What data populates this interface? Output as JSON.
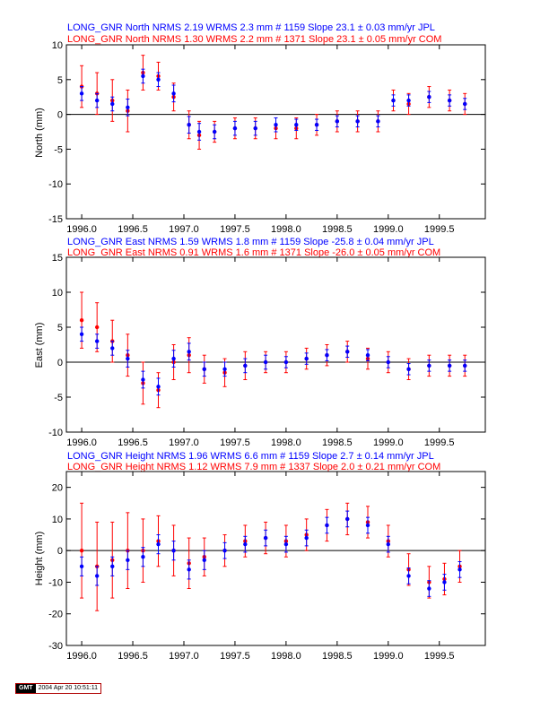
{
  "colors": {
    "red": "#ff0000",
    "blue": "#0000ff",
    "axis": "#000000"
  },
  "x_ticks": [
    "1996.0",
    "1996.5",
    "1997.0",
    "1997.5",
    "1998.0",
    "1998.5",
    "1999.0",
    "1999.5"
  ],
  "panels": [
    {
      "header_jpl": "LONG_GNR North NRMS 2.19 WRMS  2.3 mm # 1159 Slope   23.1 ±  0.03 mm/yr JPL",
      "header_com": "LONG_GNR North NRMS 1.30 WRMS  2.2 mm # 1371 Slope   23.1 ±  0.05 mm/yr COM",
      "ylabel": "North (mm)",
      "y_ticks": [
        "10",
        "5",
        "0",
        "-5",
        "-10",
        "-15"
      ]
    },
    {
      "header_jpl": "LONG_GNR East NRMS 1.59 WRMS  1.8 mm # 1159 Slope  -25.8 ±  0.04 mm/yr JPL",
      "header_com": "LONG_GNR East NRMS 0.91 WRMS  1.6 mm # 1371 Slope  -26.0 ±  0.05 mm/yr COM",
      "ylabel": "East (mm)",
      "y_ticks": [
        "15",
        "10",
        "5",
        "0",
        "-5",
        "-10"
      ]
    },
    {
      "header_jpl": "LONG_GNR Height NRMS 1.96 WRMS  6.6 mm # 1159 Slope    2.7 ±  0.14 mm/yr JPL",
      "header_com": "LONG_GNR Height NRMS 1.12 WRMS  7.9 mm # 1337 Slope    2.0 ±  0.21 mm/yr COM",
      "ylabel": "Height (mm)",
      "y_ticks": [
        "20",
        "10",
        "0",
        "-10",
        "-20",
        "-30"
      ]
    }
  ],
  "chart_data": [
    {
      "type": "scatter",
      "title": "LONG_GNR North",
      "xlabel": "",
      "ylabel": "North (mm)",
      "xlim": [
        1995.85,
        1999.95
      ],
      "ylim": [
        -15,
        10
      ],
      "grid": false,
      "zero_line": true,
      "error_bars": true,
      "series": [
        {
          "name": "JPL",
          "color": "#0000ff",
          "x": [
            1996.0,
            1996.15,
            1996.3,
            1996.45,
            1996.6,
            1996.75,
            1996.9,
            1997.05,
            1997.15,
            1997.3,
            1997.5,
            1997.7,
            1997.9,
            1998.1,
            1998.3,
            1998.5,
            1998.7,
            1998.9,
            1999.05,
            1999.2,
            1999.4,
            1999.6,
            1999.75
          ],
          "y": [
            3.0,
            2.0,
            1.5,
            1.0,
            5.5,
            5.0,
            3.0,
            -1.5,
            -2.5,
            -2.5,
            -2.0,
            -2.0,
            -1.5,
            -1.5,
            -1.5,
            -1.0,
            -1.0,
            -1.0,
            2.0,
            2.0,
            2.5,
            2.0,
            1.5
          ],
          "err": [
            1.0,
            1.0,
            1.0,
            1.2,
            1.0,
            1.0,
            1.2,
            1.2,
            1.2,
            1.0,
            1.0,
            1.0,
            1.0,
            0.8,
            0.8,
            0.8,
            0.8,
            0.8,
            0.8,
            0.8,
            0.8,
            0.8,
            0.8
          ]
        },
        {
          "name": "COM",
          "color": "#ff0000",
          "x": [
            1996.0,
            1996.15,
            1996.3,
            1996.45,
            1996.6,
            1996.75,
            1996.9,
            1997.05,
            1997.15,
            1997.3,
            1997.5,
            1997.7,
            1997.9,
            1998.1,
            1998.3,
            1998.5,
            1998.7,
            1998.9,
            1999.05,
            1999.2,
            1999.4,
            1999.6,
            1999.75
          ],
          "y": [
            4.0,
            3.0,
            2.0,
            0.5,
            6.0,
            5.5,
            2.5,
            -1.5,
            -3.0,
            -2.5,
            -2.0,
            -2.0,
            -2.0,
            -2.0,
            -1.5,
            -1.0,
            -1.0,
            -1.0,
            2.0,
            1.5,
            2.5,
            2.0,
            1.5
          ],
          "err": [
            3.0,
            3.0,
            3.0,
            3.0,
            2.5,
            2.0,
            2.0,
            2.0,
            2.0,
            1.5,
            1.5,
            1.5,
            1.5,
            1.5,
            1.5,
            1.5,
            1.5,
            1.5,
            1.5,
            1.5,
            1.5,
            1.5,
            1.5
          ]
        }
      ]
    },
    {
      "type": "scatter",
      "title": "LONG_GNR East",
      "xlabel": "",
      "ylabel": "East (mm)",
      "xlim": [
        1995.85,
        1999.95
      ],
      "ylim": [
        -10,
        15
      ],
      "grid": false,
      "zero_line": true,
      "error_bars": true,
      "series": [
        {
          "name": "JPL",
          "color": "#0000ff",
          "x": [
            1996.0,
            1996.15,
            1996.3,
            1996.45,
            1996.6,
            1996.75,
            1996.9,
            1997.05,
            1997.2,
            1997.4,
            1997.6,
            1997.8,
            1998.0,
            1998.2,
            1998.4,
            1998.6,
            1998.8,
            1999.0,
            1999.2,
            1999.4,
            1999.6,
            1999.75
          ],
          "y": [
            4.0,
            3.0,
            2.0,
            0.5,
            -2.5,
            -3.5,
            0.5,
            1.5,
            -1.0,
            -1.0,
            -0.5,
            0.0,
            0.0,
            0.5,
            1.0,
            1.5,
            1.0,
            0.0,
            -1.0,
            -0.5,
            -0.5,
            -0.5
          ],
          "err": [
            1.0,
            1.0,
            1.0,
            1.2,
            1.2,
            1.2,
            1.2,
            1.2,
            1.0,
            1.0,
            1.0,
            1.0,
            0.8,
            0.8,
            0.8,
            0.8,
            0.8,
            0.8,
            0.8,
            0.8,
            0.8,
            0.8
          ]
        },
        {
          "name": "COM",
          "color": "#ff0000",
          "x": [
            1996.0,
            1996.15,
            1996.3,
            1996.45,
            1996.6,
            1996.75,
            1996.9,
            1997.05,
            1997.2,
            1997.4,
            1997.6,
            1997.8,
            1998.0,
            1998.2,
            1998.4,
            1998.6,
            1998.8,
            1999.0,
            1999.2,
            1999.4,
            1999.6,
            1999.75
          ],
          "y": [
            6.0,
            5.0,
            3.0,
            1.0,
            -3.0,
            -4.0,
            0.0,
            1.0,
            -1.0,
            -1.5,
            -0.5,
            0.0,
            0.0,
            0.5,
            1.0,
            1.5,
            0.5,
            0.0,
            -1.0,
            -0.5,
            -0.5,
            -0.5
          ],
          "err": [
            4.0,
            3.5,
            3.0,
            3.0,
            3.0,
            2.5,
            2.5,
            2.5,
            2.0,
            2.0,
            2.0,
            1.5,
            1.5,
            1.5,
            1.5,
            1.5,
            1.5,
            1.5,
            1.5,
            1.5,
            1.5,
            1.5
          ]
        }
      ]
    },
    {
      "type": "scatter",
      "title": "LONG_GNR Height",
      "xlabel": "",
      "ylabel": "Height (mm)",
      "xlim": [
        1995.85,
        1999.95
      ],
      "ylim": [
        -30,
        25
      ],
      "grid": false,
      "zero_line": true,
      "error_bars": true,
      "series": [
        {
          "name": "JPL",
          "color": "#0000ff",
          "x": [
            1996.0,
            1996.15,
            1996.3,
            1996.45,
            1996.6,
            1996.75,
            1996.9,
            1997.05,
            1997.2,
            1997.4,
            1997.6,
            1997.8,
            1998.0,
            1998.2,
            1998.4,
            1998.6,
            1998.8,
            1999.0,
            1999.2,
            1999.4,
            1999.55,
            1999.7
          ],
          "y": [
            -5.0,
            -8.0,
            -5.0,
            -3.0,
            -2.0,
            2.0,
            0.0,
            -6.0,
            -3.0,
            0.0,
            2.0,
            4.0,
            2.0,
            4.0,
            8.0,
            10.0,
            8.0,
            2.0,
            -8.0,
            -12.0,
            -10.0,
            -6.0
          ],
          "err": [
            3.0,
            3.0,
            3.0,
            3.0,
            3.0,
            3.0,
            3.0,
            3.0,
            3.0,
            2.5,
            2.5,
            2.5,
            2.5,
            2.5,
            2.5,
            2.5,
            2.5,
            2.5,
            2.5,
            2.5,
            2.5,
            2.5
          ]
        },
        {
          "name": "COM",
          "color": "#ff0000",
          "x": [
            1996.0,
            1996.15,
            1996.3,
            1996.45,
            1996.6,
            1996.75,
            1996.9,
            1997.05,
            1997.2,
            1997.4,
            1997.6,
            1997.8,
            1998.0,
            1998.2,
            1998.4,
            1998.6,
            1998.8,
            1999.0,
            1999.2,
            1999.4,
            1999.55,
            1999.7
          ],
          "y": [
            0.0,
            -5.0,
            -3.0,
            0.0,
            0.0,
            3.0,
            0.0,
            -4.0,
            -2.0,
            0.0,
            3.0,
            4.0,
            3.0,
            5.0,
            8.0,
            10.0,
            9.0,
            3.0,
            -6.0,
            -10.0,
            -9.0,
            -5.0
          ],
          "err": [
            15.0,
            14.0,
            12.0,
            12.0,
            10.0,
            8.0,
            8.0,
            8.0,
            6.0,
            5.0,
            5.0,
            5.0,
            5.0,
            5.0,
            5.0,
            5.0,
            5.0,
            5.0,
            5.0,
            5.0,
            5.0,
            5.0
          ]
        }
      ]
    }
  ],
  "footer": {
    "logo": "GMT",
    "timestamp": "2004 Apr 20 10:51:11"
  }
}
